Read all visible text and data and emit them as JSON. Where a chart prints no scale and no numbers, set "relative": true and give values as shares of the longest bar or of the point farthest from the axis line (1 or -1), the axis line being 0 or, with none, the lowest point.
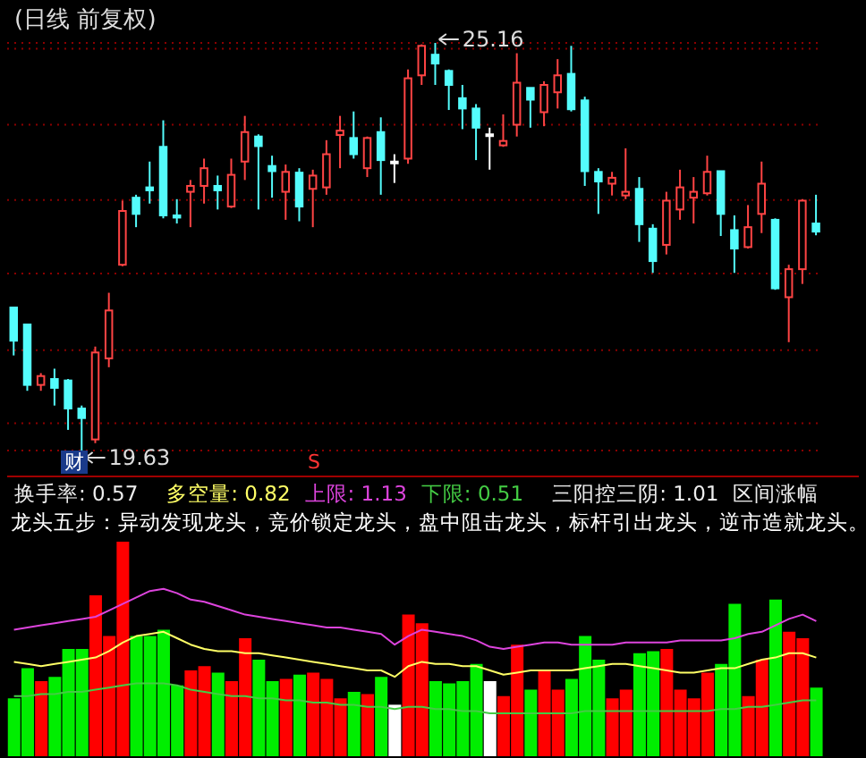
{
  "chart_data": [
    {
      "type": "candlestick",
      "title": "(日线 前复权)",
      "categories": [
        null,
        null,
        null,
        null,
        null,
        null,
        null,
        null,
        null,
        null,
        null,
        null,
        null,
        null,
        null,
        null,
        null,
        null,
        null,
        null,
        null,
        null,
        null,
        null,
        null,
        null,
        null,
        null,
        null,
        null,
        null,
        null,
        null,
        null,
        null,
        null,
        null,
        null,
        null,
        null,
        null,
        null,
        null,
        null,
        null,
        null,
        null,
        null,
        null,
        null,
        null,
        null,
        null,
        null,
        null,
        null,
        null,
        null,
        null,
        null
      ],
      "ylim": [
        19.63,
        25.16
      ],
      "yticks": [
        {
          "value": 25.08,
          "label": null
        },
        {
          "value": 24.05,
          "label": null
        },
        {
          "value": 23.03,
          "label": null
        },
        {
          "value": 22.03,
          "label": null
        },
        {
          "value": 20.99,
          "label": null
        },
        {
          "value": 20.0,
          "label": null
        }
      ],
      "grid": "y",
      "ohlc": [
        [
          21.57,
          21.57,
          20.92,
          21.12
        ],
        [
          21.34,
          21.34,
          20.44,
          20.52
        ],
        [
          20.52,
          20.68,
          20.44,
          20.64
        ],
        [
          20.6,
          20.74,
          20.24,
          20.48
        ],
        [
          20.58,
          20.6,
          19.91,
          20.2
        ],
        [
          20.2,
          20.24,
          19.63,
          20.07
        ],
        [
          19.78,
          21.04,
          19.73,
          20.96
        ],
        [
          20.88,
          21.77,
          20.76,
          21.53
        ],
        [
          22.15,
          23.02,
          22.13,
          22.88
        ],
        [
          23.06,
          23.1,
          22.66,
          22.84
        ],
        [
          23.2,
          23.55,
          22.98,
          23.16
        ],
        [
          23.75,
          24.11,
          22.78,
          22.82
        ],
        [
          22.82,
          23.04,
          22.71,
          22.79
        ],
        [
          23.14,
          23.3,
          22.66,
          23.22
        ],
        [
          23.22,
          23.59,
          22.98,
          23.46
        ],
        [
          23.22,
          23.36,
          22.9,
          23.16
        ],
        [
          22.94,
          23.59,
          22.92,
          23.37
        ],
        [
          23.55,
          24.17,
          23.3,
          23.95
        ],
        [
          23.89,
          23.92,
          22.9,
          23.76
        ],
        [
          23.49,
          23.63,
          23.06,
          23.42
        ],
        [
          23.14,
          23.51,
          22.76,
          23.41
        ],
        [
          23.4,
          23.46,
          22.74,
          22.94
        ],
        [
          23.18,
          23.44,
          22.66,
          23.36
        ],
        [
          23.2,
          23.84,
          23.1,
          23.65
        ],
        [
          23.91,
          24.17,
          23.46,
          23.97
        ],
        [
          23.87,
          24.23,
          23.59,
          23.65
        ],
        [
          23.46,
          23.89,
          23.34,
          23.87
        ],
        [
          23.95,
          24.15,
          23.1,
          23.57
        ],
        [
          23.55,
          23.65,
          23.26,
          23.55
        ],
        [
          23.59,
          24.8,
          23.52,
          24.68
        ],
        [
          24.72,
          25.14,
          24.59,
          25.12
        ],
        [
          25.0,
          25.16,
          24.59,
          24.88
        ],
        [
          24.78,
          24.8,
          24.25,
          24.59
        ],
        [
          24.41,
          24.59,
          23.99,
          24.27
        ],
        [
          24.27,
          24.33,
          23.57,
          24.01
        ],
        [
          23.92,
          24.01,
          23.44,
          23.92
        ],
        [
          23.77,
          24.19,
          23.75,
          23.83
        ],
        [
          24.05,
          25.02,
          23.89,
          24.62
        ],
        [
          24.55,
          24.55,
          24.01,
          24.39
        ],
        [
          24.22,
          24.64,
          24.03,
          24.59
        ],
        [
          24.49,
          24.94,
          24.27,
          24.72
        ],
        [
          24.74,
          25.12,
          24.23,
          24.26
        ],
        [
          24.38,
          24.43,
          23.22,
          23.42
        ],
        [
          23.41,
          23.46,
          22.84,
          23.28
        ],
        [
          23.25,
          23.41,
          23.09,
          23.33
        ],
        [
          23.09,
          23.73,
          23.04,
          23.14
        ],
        [
          23.18,
          23.34,
          22.46,
          22.7
        ],
        [
          22.64,
          22.7,
          22.04,
          22.2
        ],
        [
          22.42,
          23.14,
          22.29,
          23.02
        ],
        [
          22.9,
          23.44,
          22.76,
          23.2
        ],
        [
          23.06,
          23.34,
          22.71,
          23.14
        ],
        [
          23.12,
          23.63,
          23.09,
          23.41
        ],
        [
          23.42,
          23.42,
          22.54,
          22.84
        ],
        [
          22.62,
          22.82,
          22.04,
          22.37
        ],
        [
          22.39,
          22.96,
          22.37,
          22.66
        ],
        [
          22.84,
          23.55,
          22.58,
          23.25
        ],
        [
          22.76,
          22.78,
          21.81,
          21.83
        ],
        [
          21.71,
          22.15,
          21.1,
          22.09
        ],
        [
          22.09,
          23.04,
          21.89,
          23.02
        ],
        [
          22.71,
          23.1,
          22.55,
          22.6
        ]
      ],
      "colors": [
        "#54fcfc",
        "#54fcfc",
        "#ff4444",
        "#54fcfc",
        "#54fcfc",
        "#54fcfc",
        "#ff4444",
        "#ff4444",
        "#ff4444",
        "#54fcfc",
        "#54fcfc",
        "#54fcfc",
        "#54fcfc",
        "#ff4444",
        "#ff4444",
        "#54fcfc",
        "#ff4444",
        "#ff4444",
        "#54fcfc",
        "#54fcfc",
        "#ff4444",
        "#54fcfc",
        "#ff4444",
        "#ff4444",
        "#ff4444",
        "#54fcfc",
        "#ff4444",
        "#54fcfc",
        "#ffffff",
        "#ff4444",
        "#ff4444",
        "#54fcfc",
        "#54fcfc",
        "#54fcfc",
        "#54fcfc",
        "#ffffff",
        "#ff4444",
        "#ff4444",
        "#54fcfc",
        "#ff4444",
        "#ff4444",
        "#54fcfc",
        "#54fcfc",
        "#54fcfc",
        "#ff4444",
        "#ff4444",
        "#54fcfc",
        "#54fcfc",
        "#ff4444",
        "#ff4444",
        "#ff4444",
        "#ff4444",
        "#54fcfc",
        "#54fcfc",
        "#ff4444",
        "#ff4444",
        "#54fcfc",
        "#ff4444",
        "#ff4444",
        "#54fcfc"
      ],
      "annotations": [
        "25.16",
        "19.63",
        "财",
        "S"
      ]
    },
    {
      "type": "bar",
      "relative": true,
      "legend": "top",
      "subtitle": "龙头五步：异动发现龙头，竞价锁定龙头，盘中阻击龙头，标杆引出龙头，逆市造就龙头。",
      "categories": [
        null,
        null,
        null,
        null,
        null,
        null,
        null,
        null,
        null,
        null,
        null,
        null,
        null,
        null,
        null,
        null,
        null,
        null,
        null,
        null,
        null,
        null,
        null,
        null,
        null,
        null,
        null,
        null,
        null,
        null,
        null,
        null,
        null,
        null,
        null,
        null,
        null,
        null,
        null,
        null,
        null,
        null,
        null,
        null,
        null,
        null,
        null,
        null,
        null,
        null,
        null,
        null,
        null,
        null,
        null,
        null,
        null,
        null,
        null,
        null
      ],
      "series": [
        {
          "name": "换手率: 0.57",
          "values": [
            0.27,
            0.41,
            0.35,
            0.37,
            0.5,
            0.5,
            0.75,
            0.56,
            1.0,
            0.56,
            0.56,
            0.59,
            0.33,
            0.4,
            0.42,
            0.39,
            0.35,
            0.55,
            0.45,
            0.35,
            0.36,
            0.38,
            0.39,
            0.36,
            0.27,
            0.3,
            0.29,
            0.37,
            0.24,
            0.66,
            0.62,
            0.35,
            0.34,
            0.35,
            0.43,
            0.35,
            0.28,
            0.52,
            0.31,
            0.4,
            0.31,
            0.36,
            0.56,
            0.45,
            0.27,
            0.31,
            0.48,
            0.49,
            0.5,
            0.31,
            0.27,
            0.39,
            0.43,
            0.71,
            0.28,
            0.45,
            0.73,
            0.58,
            0.55,
            0.32
          ],
          "colors": [
            "#00ee00",
            "#00ee00",
            "#ff0000",
            "#00ee00",
            "#00ee00",
            "#00ee00",
            "#ff0000",
            "#ff0000",
            "#ff0000",
            "#00ee00",
            "#00ee00",
            "#00ee00",
            "#00ee00",
            "#ff0000",
            "#ff0000",
            "#00ee00",
            "#ff0000",
            "#ff0000",
            "#00ee00",
            "#00ee00",
            "#ff0000",
            "#00ee00",
            "#ff0000",
            "#ff0000",
            "#ff0000",
            "#00ee00",
            "#ff0000",
            "#00ee00",
            "#ffffff",
            "#ff0000",
            "#ff0000",
            "#00ee00",
            "#00ee00",
            "#00ee00",
            "#00ee00",
            "#ffffff",
            "#ff0000",
            "#ff0000",
            "#00ee00",
            "#ff0000",
            "#ff0000",
            "#00ee00",
            "#00ee00",
            "#00ee00",
            "#ff0000",
            "#ff0000",
            "#00ee00",
            "#00ee00",
            "#ff0000",
            "#ff0000",
            "#ff0000",
            "#ff0000",
            "#00ee00",
            "#00ee00",
            "#ff0000",
            "#ff0000",
            "#00ee00",
            "#ff0000",
            "#ff0000",
            "#00ee00"
          ]
        },
        {
          "type": "line",
          "name": "多空量: 0.82",
          "color": "#ffff66",
          "values": [
            0.44,
            0.43,
            0.42,
            0.43,
            0.44,
            0.45,
            0.46,
            0.49,
            0.53,
            0.56,
            0.57,
            0.58,
            0.55,
            0.52,
            0.5,
            0.49,
            0.49,
            0.48,
            0.48,
            0.47,
            0.46,
            0.45,
            0.44,
            0.43,
            0.42,
            0.41,
            0.4,
            0.4,
            0.37,
            0.42,
            0.44,
            0.43,
            0.43,
            0.42,
            0.42,
            0.4,
            0.38,
            0.39,
            0.4,
            0.4,
            0.4,
            0.4,
            0.41,
            0.42,
            0.43,
            0.43,
            0.42,
            0.41,
            0.4,
            0.39,
            0.39,
            0.4,
            0.41,
            0.41,
            0.43,
            0.45,
            0.46,
            0.48,
            0.48,
            0.46
          ]
        },
        {
          "type": "line",
          "name": "上限: 1.13",
          "color": "#dd44dd",
          "values": [
            0.59,
            0.6,
            0.61,
            0.62,
            0.63,
            0.64,
            0.65,
            0.68,
            0.71,
            0.74,
            0.77,
            0.78,
            0.76,
            0.73,
            0.72,
            0.7,
            0.68,
            0.66,
            0.65,
            0.64,
            0.63,
            0.62,
            0.61,
            0.6,
            0.6,
            0.59,
            0.58,
            0.57,
            0.52,
            0.56,
            0.59,
            0.58,
            0.57,
            0.56,
            0.54,
            0.51,
            0.5,
            0.51,
            0.52,
            0.53,
            0.53,
            0.52,
            0.52,
            0.52,
            0.52,
            0.53,
            0.53,
            0.53,
            0.53,
            0.54,
            0.54,
            0.54,
            0.54,
            0.55,
            0.57,
            0.58,
            0.61,
            0.64,
            0.66,
            0.63
          ]
        },
        {
          "type": "line",
          "name": "下限: 0.51",
          "color": "#44cc44",
          "values": [
            0.28,
            0.28,
            0.29,
            0.29,
            0.3,
            0.3,
            0.31,
            0.32,
            0.33,
            0.34,
            0.34,
            0.34,
            0.33,
            0.31,
            0.3,
            0.29,
            0.28,
            0.28,
            0.27,
            0.27,
            0.26,
            0.26,
            0.25,
            0.25,
            0.24,
            0.24,
            0.23,
            0.23,
            0.22,
            0.23,
            0.23,
            0.22,
            0.22,
            0.21,
            0.21,
            0.2,
            0.2,
            0.2,
            0.2,
            0.2,
            0.2,
            0.2,
            0.21,
            0.21,
            0.21,
            0.21,
            0.21,
            0.21,
            0.21,
            0.21,
            0.21,
            0.21,
            0.22,
            0.22,
            0.23,
            0.23,
            0.24,
            0.25,
            0.26,
            0.26
          ]
        }
      ],
      "annotations": [
        "三阳控三阴: 1.01",
        "区间涨幅"
      ]
    }
  ]
}
